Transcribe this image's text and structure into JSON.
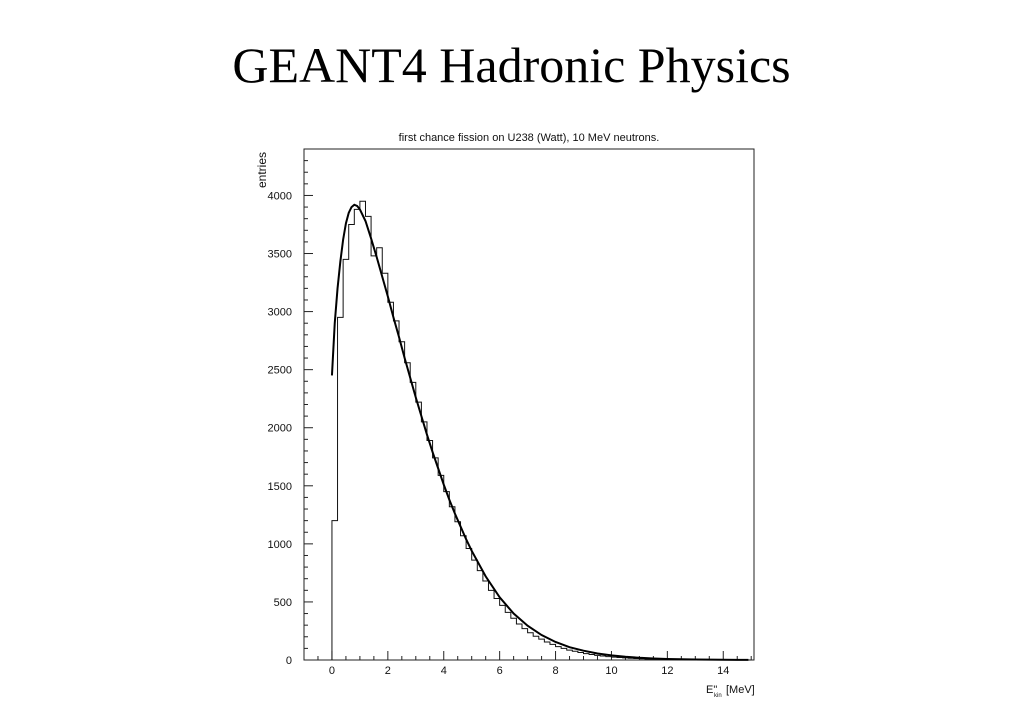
{
  "slide": {
    "title": "GEANT4 Hadronic Physics"
  },
  "chart_data": {
    "type": "line",
    "title": "first chance fission on U238 (Watt), 10 MeV neutrons.",
    "ylabel": "entries",
    "xlabel": "E\"kin [MeV]",
    "xlabel_main": "E\"",
    "xlabel_sub": "kin",
    "xlabel_unit": "[MeV]",
    "xlim": [
      -1.0,
      15.1
    ],
    "ylim": [
      0,
      4400
    ],
    "x_ticks": [
      0,
      2,
      4,
      6,
      8,
      10,
      12,
      14
    ],
    "y_ticks": [
      0,
      500,
      1000,
      1500,
      2000,
      2500,
      3000,
      3500,
      4000
    ],
    "x_tick_labels": [
      "0",
      "2",
      "4",
      "6",
      "8",
      "10",
      "12",
      "14"
    ],
    "y_tick_labels": [
      "0",
      "500",
      "1000",
      "1500",
      "2000",
      "2500",
      "3000",
      "3500",
      "4000"
    ],
    "grid": false,
    "series": [
      {
        "style": "histogram",
        "bin_width": 0.2,
        "x": [
          0.0,
          0.2,
          0.4,
          0.6,
          0.8,
          1.0,
          1.2,
          1.4,
          1.6,
          1.8,
          2.0,
          2.2,
          2.4,
          2.6,
          2.8,
          3.0,
          3.2,
          3.4,
          3.6,
          3.8,
          4.0,
          4.2,
          4.4,
          4.6,
          4.8,
          5.0,
          5.2,
          5.4,
          5.6,
          5.8,
          6.0,
          6.2,
          6.4,
          6.6,
          6.8,
          7.0,
          7.2,
          7.4,
          7.6,
          7.8,
          8.0,
          8.2,
          8.4,
          8.6,
          8.8,
          9.0,
          9.2,
          9.4,
          9.6,
          9.8,
          10.0,
          10.2,
          10.4,
          10.6,
          10.8,
          11.0,
          11.2,
          11.4,
          11.6,
          11.8,
          12.0,
          12.2,
          12.4,
          12.6,
          12.8,
          13.0,
          13.2,
          13.4,
          13.6,
          13.8,
          14.0,
          14.2,
          14.4,
          14.6,
          14.8
        ],
        "values": [
          1200,
          2950,
          3450,
          3750,
          3880,
          3950,
          3820,
          3480,
          3550,
          3330,
          3080,
          2920,
          2740,
          2560,
          2390,
          2220,
          2050,
          1890,
          1740,
          1590,
          1450,
          1320,
          1190,
          1070,
          960,
          860,
          770,
          680,
          600,
          530,
          470,
          410,
          360,
          310,
          270,
          235,
          205,
          180,
          155,
          135,
          115,
          100,
          85,
          75,
          65,
          55,
          47,
          40,
          34,
          29,
          25,
          21,
          18,
          15,
          13,
          11,
          9,
          8,
          7,
          6,
          5,
          4,
          4,
          3,
          3,
          2,
          2,
          2,
          1,
          1,
          1,
          1,
          1,
          0,
          0
        ]
      },
      {
        "style": "smooth-curve",
        "x": [
          0.0,
          0.1,
          0.2,
          0.3,
          0.4,
          0.5,
          0.6,
          0.7,
          0.8,
          0.9,
          1.0,
          1.2,
          1.4,
          1.6,
          1.8,
          2.0,
          2.2,
          2.4,
          2.6,
          2.8,
          3.0,
          3.2,
          3.4,
          3.6,
          3.8,
          4.0,
          4.2,
          4.4,
          4.6,
          4.8,
          5.0,
          5.5,
          6.0,
          6.5,
          7.0,
          7.5,
          8.0,
          8.5,
          9.0,
          9.5,
          10.0,
          10.5,
          11.0,
          11.5,
          12.0,
          12.5,
          13.0,
          13.5,
          14.0,
          14.5,
          14.9
        ],
        "values": [
          2450,
          2900,
          3200,
          3430,
          3620,
          3760,
          3850,
          3900,
          3920,
          3910,
          3880,
          3780,
          3630,
          3470,
          3300,
          3130,
          2950,
          2780,
          2600,
          2430,
          2260,
          2100,
          1940,
          1790,
          1650,
          1510,
          1380,
          1260,
          1150,
          1040,
          940,
          720,
          540,
          400,
          295,
          215,
          155,
          110,
          80,
          56,
          40,
          28,
          19,
          13,
          9,
          6,
          4,
          3,
          2,
          1,
          1
        ]
      }
    ]
  }
}
